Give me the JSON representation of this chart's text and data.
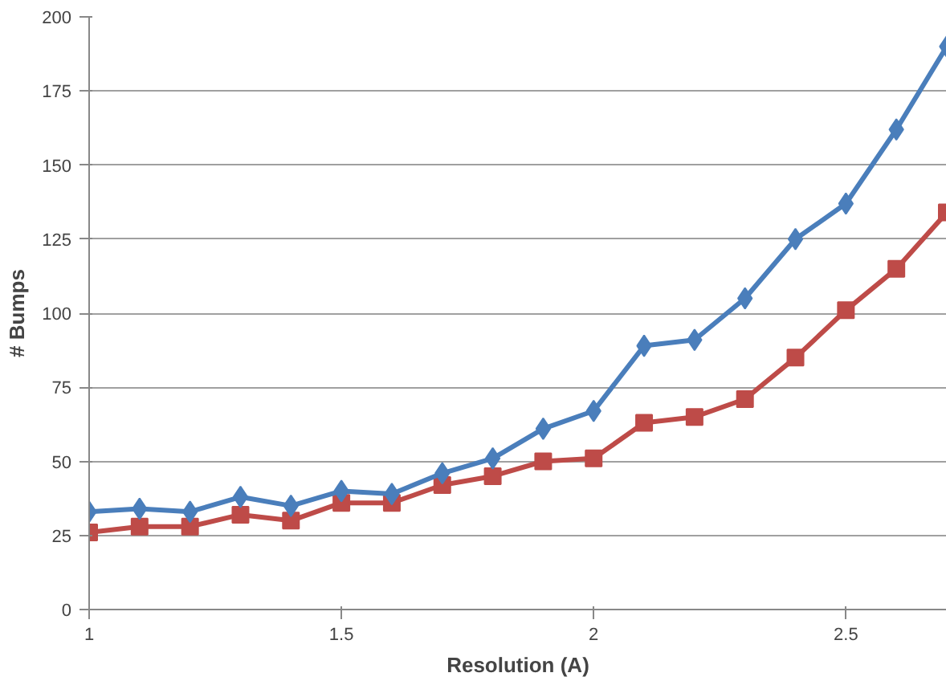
{
  "chart_data": {
    "type": "line",
    "xlabel": "Resolution (A)",
    "ylabel": "# Bumps",
    "x": [
      1.0,
      1.1,
      1.2,
      1.3,
      1.4,
      1.5,
      1.6,
      1.7,
      1.8,
      1.9,
      2.0,
      2.1,
      2.2,
      2.3,
      2.4,
      2.5,
      2.6,
      2.7
    ],
    "series": [
      {
        "color": "#4a7ebb",
        "marker": "diamond",
        "values": [
          33,
          34,
          33,
          38,
          35,
          40,
          39,
          46,
          51,
          61,
          67,
          89,
          91,
          105,
          125,
          137,
          162,
          190
        ]
      },
      {
        "color": "#be4b48",
        "marker": "square",
        "values": [
          26,
          28,
          28,
          32,
          30,
          36,
          36,
          42,
          45,
          50,
          51,
          63,
          65,
          71,
          85,
          101,
          115,
          134
        ]
      }
    ],
    "xlim": [
      1,
      2.7
    ],
    "ylim": [
      0,
      200
    ],
    "xticks": [
      1,
      1.5,
      2,
      2.5
    ],
    "yticks": [
      0,
      25,
      50,
      75,
      100,
      125,
      150,
      175,
      200
    ],
    "grid": "y",
    "line_style": "solid"
  }
}
